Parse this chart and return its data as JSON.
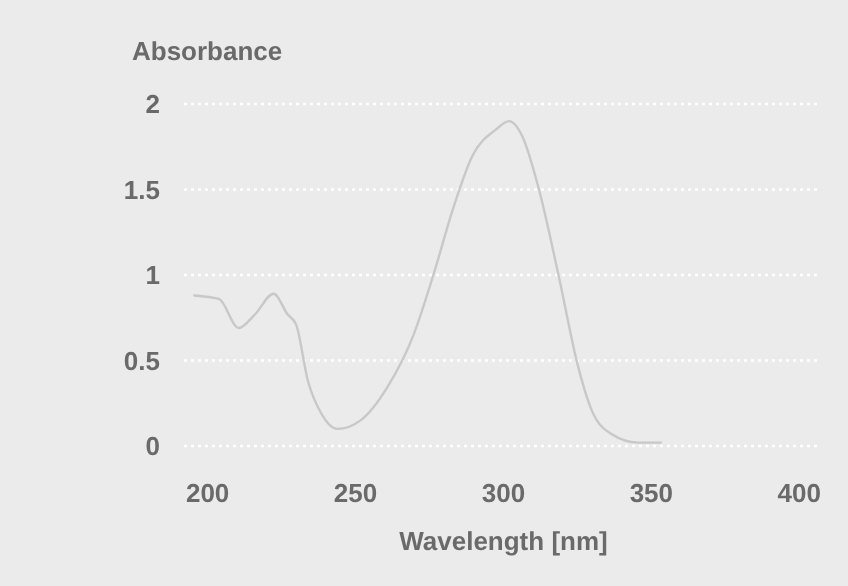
{
  "chart_data": {
    "type": "line",
    "ylabel": "Absorbance",
    "xlabel": "Wavelength [nm]",
    "xlim": [
      192,
      407
    ],
    "xticks": [
      200,
      250,
      300,
      350,
      400
    ],
    "ylim": [
      0,
      2
    ],
    "yticks": [
      0,
      0.5,
      1,
      1.5,
      2
    ],
    "grid": "y",
    "line_style": "solid",
    "series": [
      {
        "color": "#c8c8c8",
        "x": [
          195.5,
          203.8,
          210.5,
          216,
          222.3,
          227,
          229.9,
          233.9,
          238.4,
          243.9,
          251.7,
          260.6,
          269.6,
          276.3,
          283,
          289.6,
          297.4,
          301.9,
          306.4,
          312,
          318.6,
          325.3,
          329.8,
          336.5,
          345.4,
          353.2
        ],
        "values": [
          0.88,
          0.86,
          0.69,
          0.77,
          0.89,
          0.77,
          0.71,
          0.38,
          0.19,
          0.1,
          0.15,
          0.34,
          0.65,
          1.0,
          1.39,
          1.7,
          1.85,
          1.9,
          1.81,
          1.5,
          1.0,
          0.46,
          0.21,
          0.07,
          0.02,
          0.02
        ]
      }
    ]
  }
}
